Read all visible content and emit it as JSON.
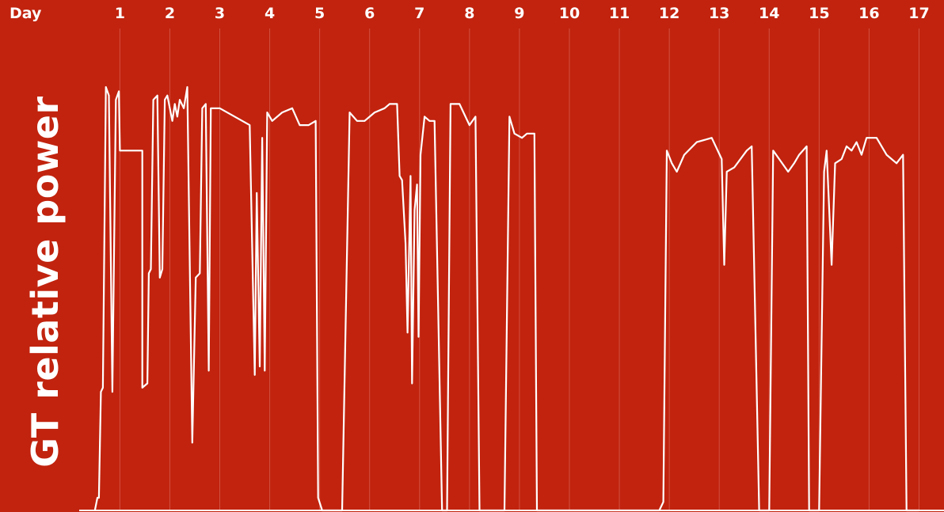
{
  "colors": {
    "background": "#c1230e",
    "line": "#ffffff",
    "grid": "#e0786a"
  },
  "chart_data": {
    "type": "line",
    "xlabel": "Day",
    "ylabel": "GT relative power",
    "x_ticks": [
      "1",
      "2",
      "3",
      "4",
      "5",
      "6",
      "7",
      "8",
      "9",
      "10",
      "11",
      "12",
      "13",
      "14",
      "15",
      "16",
      "17"
    ],
    "xlim": [
      -1.4,
      17.5
    ],
    "ylim": [
      0,
      1
    ],
    "grid": true,
    "series": [
      {
        "points": [
          [
            0.5,
            0
          ],
          [
            0.55,
            0.03
          ],
          [
            0.58,
            0.03
          ],
          [
            0.62,
            0.28
          ],
          [
            0.66,
            0.29
          ],
          [
            0.72,
            1.0
          ],
          [
            0.78,
            0.98
          ],
          [
            0.85,
            0.28
          ],
          [
            0.92,
            0.97
          ],
          [
            0.98,
            0.99
          ],
          [
            1.0,
            0.85
          ],
          [
            1.45,
            0.85
          ],
          [
            1.45,
            0.29
          ],
          [
            1.55,
            0.3
          ],
          [
            1.58,
            0.56
          ],
          [
            1.62,
            0.57
          ],
          [
            1.67,
            0.97
          ],
          [
            1.75,
            0.98
          ],
          [
            1.8,
            0.55
          ],
          [
            1.85,
            0.57
          ],
          [
            1.9,
            0.97
          ],
          [
            1.95,
            0.98
          ],
          [
            2.05,
            0.92
          ],
          [
            2.1,
            0.96
          ],
          [
            2.15,
            0.93
          ],
          [
            2.2,
            0.97
          ],
          [
            2.28,
            0.95
          ],
          [
            2.35,
            1.0
          ],
          [
            2.45,
            0.16
          ],
          [
            2.52,
            0.55
          ],
          [
            2.6,
            0.56
          ],
          [
            2.65,
            0.95
          ],
          [
            2.72,
            0.96
          ],
          [
            2.78,
            0.33
          ],
          [
            2.82,
            0.95
          ],
          [
            3.0,
            0.95
          ],
          [
            3.6,
            0.91
          ],
          [
            3.7,
            0.32
          ],
          [
            3.74,
            0.75
          ],
          [
            3.8,
            0.34
          ],
          [
            3.85,
            0.88
          ],
          [
            3.9,
            0.33
          ],
          [
            3.95,
            0.94
          ],
          [
            4.05,
            0.92
          ],
          [
            4.25,
            0.94
          ],
          [
            4.45,
            0.95
          ],
          [
            4.6,
            0.91
          ],
          [
            4.78,
            0.91
          ],
          [
            4.92,
            0.92
          ],
          [
            4.97,
            0.03
          ],
          [
            5.05,
            0
          ],
          [
            5.45,
            0
          ],
          [
            5.6,
            0.94
          ],
          [
            5.75,
            0.92
          ],
          [
            5.9,
            0.92
          ],
          [
            6.1,
            0.94
          ],
          [
            6.3,
            0.95
          ],
          [
            6.4,
            0.96
          ],
          [
            6.55,
            0.96
          ],
          [
            6.6,
            0.79
          ],
          [
            6.65,
            0.78
          ],
          [
            6.72,
            0.63
          ],
          [
            6.76,
            0.42
          ],
          [
            6.82,
            0.79
          ],
          [
            6.85,
            0.3
          ],
          [
            6.9,
            0.71
          ],
          [
            6.95,
            0.77
          ],
          [
            6.98,
            0.41
          ],
          [
            7.02,
            0.84
          ],
          [
            7.1,
            0.93
          ],
          [
            7.2,
            0.92
          ],
          [
            7.3,
            0.92
          ],
          [
            7.45,
            0
          ],
          [
            7.55,
            0
          ],
          [
            7.62,
            0.96
          ],
          [
            7.8,
            0.96
          ],
          [
            8.0,
            0.91
          ],
          [
            8.12,
            0.93
          ],
          [
            8.2,
            0
          ],
          [
            8.7,
            0
          ],
          [
            8.8,
            0.93
          ],
          [
            8.9,
            0.89
          ],
          [
            9.05,
            0.88
          ],
          [
            9.15,
            0.89
          ],
          [
            9.3,
            0.89
          ],
          [
            9.35,
            0
          ],
          [
            9.5,
            0
          ],
          [
            10.0,
            0
          ],
          [
            11.8,
            0
          ],
          [
            11.88,
            0.02
          ],
          [
            11.95,
            0.85
          ],
          [
            12.05,
            0.82
          ],
          [
            12.15,
            0.8
          ],
          [
            12.3,
            0.84
          ],
          [
            12.55,
            0.87
          ],
          [
            12.85,
            0.88
          ],
          [
            13.05,
            0.83
          ],
          [
            13.1,
            0.58
          ],
          [
            13.15,
            0.8
          ],
          [
            13.3,
            0.81
          ],
          [
            13.55,
            0.85
          ],
          [
            13.65,
            0.86
          ],
          [
            13.8,
            0
          ],
          [
            14.0,
            0
          ],
          [
            14.08,
            0.85
          ],
          [
            14.2,
            0.83
          ],
          [
            14.38,
            0.8
          ],
          [
            14.5,
            0.82
          ],
          [
            14.6,
            0.84
          ],
          [
            14.75,
            0.86
          ],
          [
            14.8,
            0
          ],
          [
            15.0,
            0
          ],
          [
            15.1,
            0.8
          ],
          [
            15.15,
            0.85
          ],
          [
            15.25,
            0.58
          ],
          [
            15.32,
            0.82
          ],
          [
            15.45,
            0.83
          ],
          [
            15.55,
            0.86
          ],
          [
            15.65,
            0.85
          ],
          [
            15.75,
            0.87
          ],
          [
            15.85,
            0.84
          ],
          [
            15.95,
            0.88
          ],
          [
            16.15,
            0.88
          ],
          [
            16.35,
            0.84
          ],
          [
            16.55,
            0.82
          ],
          [
            16.68,
            0.84
          ],
          [
            16.75,
            0
          ],
          [
            17.0,
            0
          ]
        ]
      }
    ]
  }
}
